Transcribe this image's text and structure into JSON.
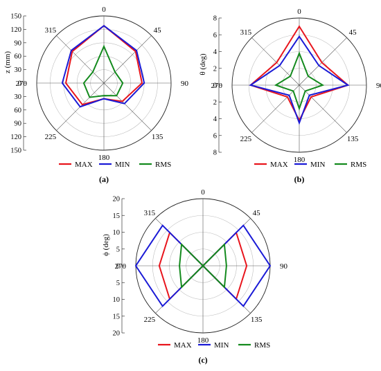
{
  "colors": {
    "max": "#e8141c",
    "min": "#1a1ad6",
    "rms": "#138a1d",
    "grid": "#bdbdbd",
    "axis": "#555555"
  },
  "chart_data": [
    {
      "type": "radar",
      "panel_label": "(a)",
      "ylabel": "z (mm)",
      "angles": [
        "0",
        "45",
        "90",
        "135",
        "180",
        "225",
        "270",
        "315"
      ],
      "radial_ticks": [
        "0",
        "30",
        "60",
        "90",
        "120",
        "150"
      ],
      "rlim": [
        0,
        150
      ],
      "grid": true,
      "legend_position": "bottom",
      "series": [
        {
          "name": "MAX",
          "values": [
            128,
            100,
            85,
            58,
            35,
            68,
            85,
            100
          ]
        },
        {
          "name": "MIN",
          "values": [
            128,
            103,
            90,
            65,
            35,
            75,
            93,
            103
          ]
        },
        {
          "name": "RMS",
          "values": [
            82,
            35,
            42,
            40,
            28,
            45,
            45,
            35
          ]
        }
      ]
    },
    {
      "type": "radar",
      "panel_label": "(b)",
      "ylabel": "θ (deg)",
      "angles": [
        "0",
        "45",
        "90",
        "135",
        "180",
        "225",
        "270",
        "315"
      ],
      "radial_ticks": [
        "0",
        "2",
        "4",
        "6",
        "8"
      ],
      "rlim": [
        0,
        8
      ],
      "grid": true,
      "legend_position": "bottom",
      "series": [
        {
          "name": "MAX",
          "values": [
            7.0,
            3.8,
            5.8,
            2.0,
            4.2,
            2.0,
            5.8,
            3.8
          ]
        },
        {
          "name": "MIN",
          "values": [
            5.8,
            3.3,
            5.8,
            1.7,
            4.5,
            1.7,
            5.8,
            3.3
          ]
        },
        {
          "name": "RMS",
          "values": [
            3.8,
            1.5,
            2.8,
            1.0,
            2.8,
            1.0,
            2.8,
            1.5
          ]
        }
      ]
    },
    {
      "type": "radar",
      "panel_label": "(c)",
      "ylabel": "ϕ (deg)",
      "angles": [
        "0",
        "45",
        "90",
        "135",
        "180",
        "225",
        "270",
        "315"
      ],
      "radial_ticks": [
        "0",
        "5",
        "10",
        "15",
        "20"
      ],
      "rlim": [
        0,
        20
      ],
      "grid": true,
      "legend_position": "bottom",
      "series": [
        {
          "name": "MAX",
          "values": [
            0,
            14,
            13,
            14,
            0,
            14,
            13,
            14
          ]
        },
        {
          "name": "MIN",
          "values": [
            0,
            17,
            20,
            17,
            0,
            17,
            20,
            17
          ]
        },
        {
          "name": "RMS",
          "values": [
            0,
            9,
            7,
            9,
            0,
            9,
            7,
            9
          ]
        }
      ]
    }
  ]
}
